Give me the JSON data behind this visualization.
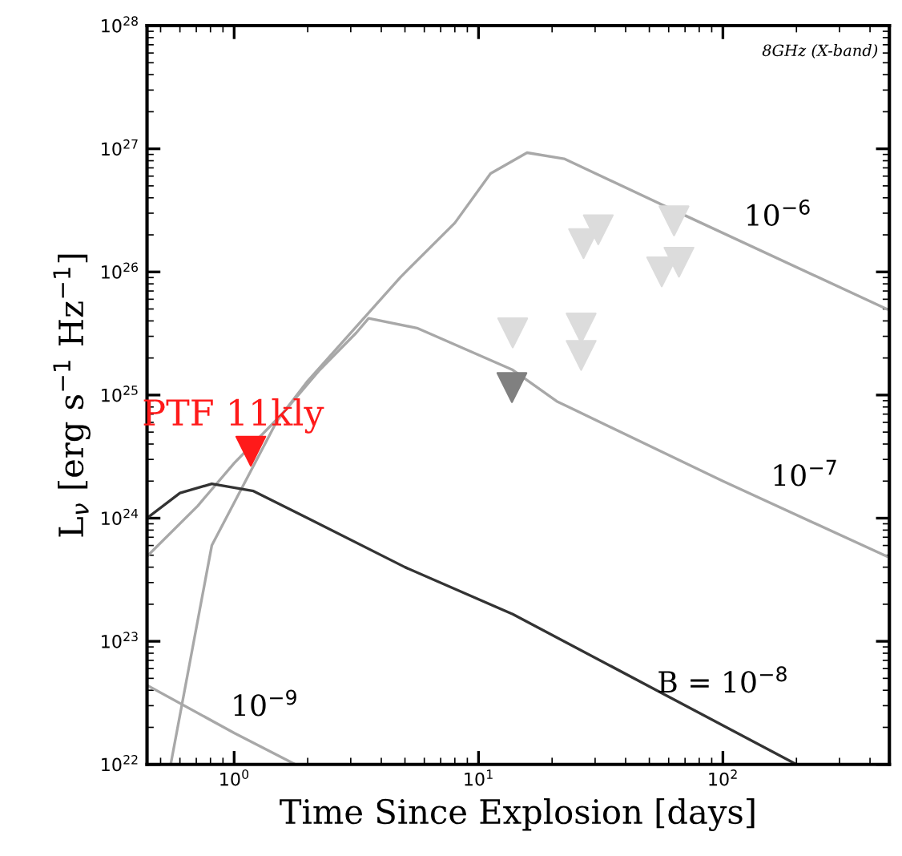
{
  "chart_data": {
    "type": "line",
    "xlabel": "Time Since Explosion [days]",
    "ylabel": "L$_{ν}$ [erg s$^{−1}$ Hz$^{−1}$]",
    "log": "xy",
    "grid": false,
    "legend": false,
    "line_style": "solid",
    "xlim": [
      0.44,
      480
    ],
    "xticks": [
      {
        "value": 1,
        "label": "10$^{0}$"
      },
      {
        "value": 10,
        "label": "10$^{1}$"
      },
      {
        "value": 100,
        "label": "10$^{2}$"
      }
    ],
    "ylim": [
      1e+22,
      1e+28
    ],
    "yticks": [
      {
        "value": 1e+22,
        "label": "10$^{22}$"
      },
      {
        "value": 1e+23,
        "label": "10$^{23}$"
      },
      {
        "value": 1e+24,
        "label": "10$^{24}$"
      },
      {
        "value": 1e+25,
        "label": "10$^{25}$"
      },
      {
        "value": 1e+26,
        "label": "10$^{26}$"
      },
      {
        "value": 1e+27,
        "label": "10$^{27}$"
      },
      {
        "value": 1e+28,
        "label": "10$^{28}$"
      }
    ],
    "series": [
      {
        "name": "10$^{−6}$",
        "color": "#a8a8a8",
        "x": [
          0.55,
          0.81,
          1.5,
          2.0,
          4.8,
          8.0,
          11.2,
          15.8,
          22.4,
          60.3,
          468
        ],
        "values": [
          1e+22,
          6e+23,
          6.2e+24,
          1.3e+25,
          9.1e+25,
          2.5e+26,
          6.3e+26,
          9.3e+26,
          8.3e+26,
          3.3e+26,
          5e+25
        ]
      },
      {
        "name": "10$^{−7}$",
        "color": "#a8a8a8",
        "x": [
          0.44,
          0.71,
          1.0,
          1.58,
          2.24,
          3.16,
          3.55,
          5.6,
          13.8,
          20.9,
          100,
          468
        ],
        "values": [
          4.9e+23,
          1.26e+24,
          2.8e+24,
          7.1e+24,
          1.6e+25,
          3.2e+25,
          4.2e+25,
          3.5e+25,
          1.6e+25,
          8.9e+24,
          2e+24,
          4.9e+23
        ]
      },
      {
        "name": "B = 10$^{−8}$",
        "color": "#333333",
        "x": [
          0.44,
          0.6,
          0.81,
          1.2,
          2.0,
          5.0,
          13.8,
          50,
          200
        ],
        "values": [
          1e+24,
          1.6e+24,
          1.9e+24,
          1.66e+24,
          1e+24,
          4e+23,
          1.66e+23,
          4.3e+22,
          1e+22
        ]
      },
      {
        "name": "10$^{−9}$",
        "color": "#a8a8a8",
        "x": [
          0.44,
          1.0,
          1.78
        ],
        "values": [
          4.4e+22,
          1.8e+22,
          1e+22
        ]
      },
      {
        "name": "PTF 11kly",
        "type": "scatter",
        "marker": "triangle",
        "color": "#ff1a1a",
        "x": [
          1.17
        ],
        "values": [
          3.5e+24
        ]
      },
      {
        "type": "scatter",
        "marker": "triangle",
        "color": "#808080",
        "x": [
          13.7
        ],
        "values": [
          1.15e+25
        ]
      },
      {
        "type": "scatter",
        "marker": "triangle",
        "color": "#dcdcdc",
        "x": [
          13.8,
          26.3,
          26.3,
          26.9,
          30.9,
          63.1,
          56.2,
          66.1
        ],
        "values": [
          3.2e+25,
          3.5e+25,
          2.1e+25,
          1.7e+26,
          2.2e+26,
          2.6e+26,
          1e+26,
          1.2e+26
        ]
      }
    ],
    "annotations": [
      "8GHz (X-band)"
    ]
  }
}
